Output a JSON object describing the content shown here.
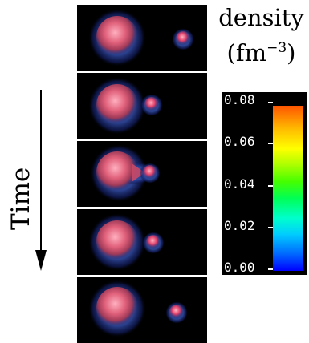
{
  "labels": {
    "time": "Time",
    "density": "density",
    "density_unit_base": "(fm",
    "density_unit_exp": "−3",
    "density_unit_close": ")"
  },
  "colorbar": {
    "ticks": [
      "0.08",
      "0.06",
      "0.04",
      "0.02",
      "0.00"
    ],
    "tick_values": [
      0.08,
      0.06,
      0.04,
      0.02,
      0.0
    ]
  },
  "colors": {
    "background": "#000000",
    "nucleus_core": "#ff8aa0",
    "nucleus_body": "#d04a66",
    "halo": "#1a2a80"
  }
}
